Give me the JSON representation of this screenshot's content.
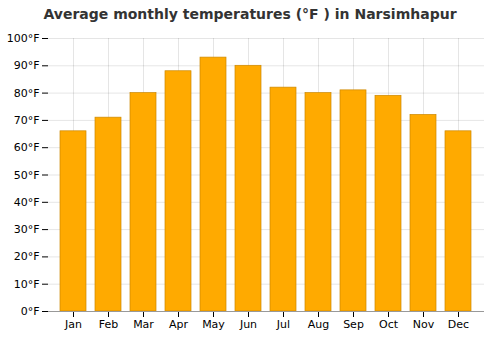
{
  "chart_data": {
    "type": "bar",
    "title": "Average monthly temperatures (°F ) in Narsimhapur",
    "categories": [
      "Jan",
      "Feb",
      "Mar",
      "Apr",
      "May",
      "Jun",
      "Jul",
      "Aug",
      "Sep",
      "Oct",
      "Nov",
      "Dec"
    ],
    "values": [
      66,
      71,
      80,
      88,
      93,
      90,
      82,
      80,
      81,
      79,
      72,
      66
    ],
    "color": "#FFAA00",
    "ylim": [
      0,
      100
    ],
    "yticks": [
      {
        "value": 0,
        "label": "0°F"
      },
      {
        "value": 10,
        "label": "10°F"
      },
      {
        "value": 20,
        "label": "20°F"
      },
      {
        "value": 30,
        "label": "30°F"
      },
      {
        "value": 40,
        "label": "40°F"
      },
      {
        "value": 50,
        "label": "50°F"
      },
      {
        "value": 60,
        "label": "60°F"
      },
      {
        "value": 70,
        "label": "70°F"
      },
      {
        "value": 80,
        "label": "80°F"
      },
      {
        "value": 90,
        "label": "90°F"
      },
      {
        "value": 100,
        "label": "100°F"
      }
    ],
    "grid": true
  }
}
